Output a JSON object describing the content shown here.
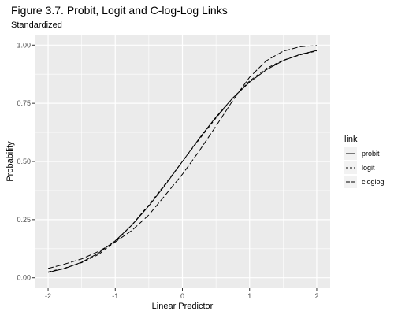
{
  "chart_data": {
    "type": "line",
    "title": "Figure 3.7. Probit, Logit and C-log-Log Links",
    "subtitle": "Standardized",
    "xlabel": "Linear Predictor",
    "ylabel": "Probability",
    "xlim": [
      -2,
      2
    ],
    "ylim": [
      0,
      1
    ],
    "x_ticks": [
      -2,
      -1,
      0,
      1,
      2
    ],
    "x_tick_labels": [
      "-2",
      "-1",
      "0",
      "1",
      "2"
    ],
    "y_ticks": [
      0,
      0.25,
      0.5,
      0.75,
      1
    ],
    "y_tick_labels": [
      "0.00",
      "0.25",
      "0.50",
      "0.75",
      "1.00"
    ],
    "grid": true,
    "panel_background": "#ebebeb",
    "legend": {
      "title": "link",
      "position": "right"
    },
    "x": [
      -2,
      -1.75,
      -1.5,
      -1.25,
      -1,
      -0.75,
      -0.5,
      -0.25,
      0,
      0.25,
      0.5,
      0.75,
      1,
      1.25,
      1.5,
      1.75,
      2
    ],
    "series": [
      {
        "name": "probit",
        "line_style": "solid",
        "color": "#000000",
        "values": [
          0.023,
          0.04,
          0.067,
          0.106,
          0.159,
          0.227,
          0.309,
          0.401,
          0.5,
          0.599,
          0.691,
          0.773,
          0.841,
          0.894,
          0.933,
          0.96,
          0.977
        ]
      },
      {
        "name": "logit",
        "line_style": "dashed",
        "color": "#000000",
        "values": [
          0.025,
          0.042,
          0.065,
          0.1,
          0.154,
          0.228,
          0.313,
          0.405,
          0.5,
          0.595,
          0.687,
          0.772,
          0.846,
          0.9,
          0.935,
          0.958,
          0.975
        ]
      },
      {
        "name": "cloglog",
        "line_style": "longdash",
        "color": "#000000",
        "values": [
          0.04,
          0.059,
          0.081,
          0.113,
          0.154,
          0.204,
          0.27,
          0.357,
          0.445,
          0.545,
          0.652,
          0.762,
          0.862,
          0.933,
          0.974,
          0.993,
          0.998
        ]
      }
    ]
  }
}
